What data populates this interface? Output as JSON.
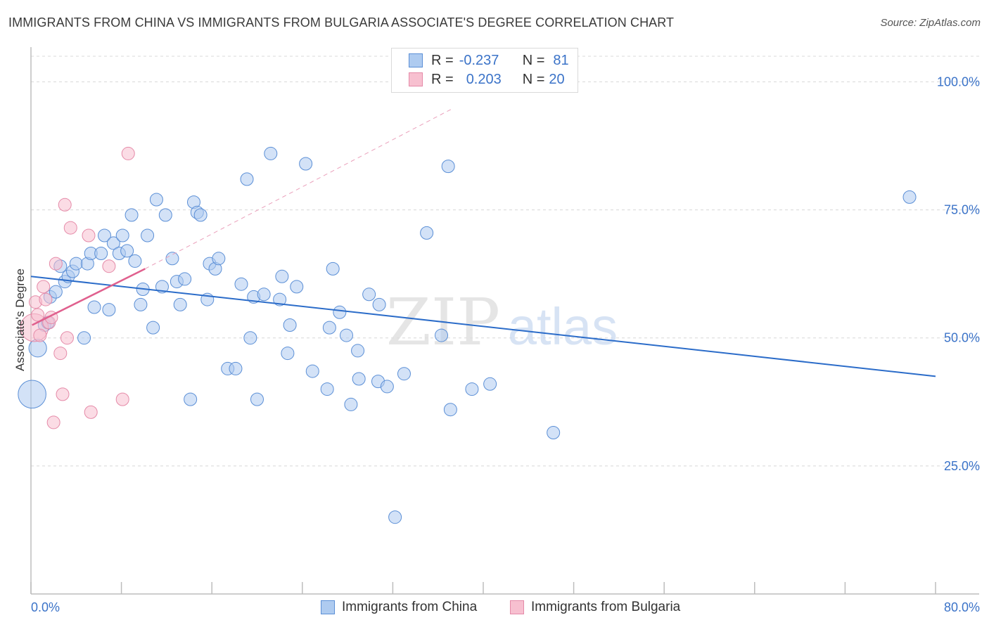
{
  "title": "IMMIGRANTS FROM CHINA VS IMMIGRANTS FROM BULGARIA ASSOCIATE'S DEGREE CORRELATION CHART",
  "source": "Source: ZipAtlas.com",
  "watermark": {
    "zip": "ZIP",
    "atlas": "atlas"
  },
  "legend": {
    "china": {
      "r_label": "R =",
      "r_value": "-0.237",
      "n_label": "N =",
      "n_value": "81"
    },
    "bulgaria": {
      "r_label": "R =",
      "r_value": "0.203",
      "n_label": "N =",
      "n_value": "20"
    }
  },
  "colors": {
    "china_fill": "#aecbf0",
    "china_stroke": "#5b8fd6",
    "china_line": "#2b6cc9",
    "bulgaria_fill": "#f7c0d0",
    "bulgaria_stroke": "#e58aa8",
    "bulgaria_line": "#e0608e",
    "tick_label": "#3b73c8",
    "grid": "#d8d8d8"
  },
  "chart_data": {
    "type": "scatter",
    "title": "IMMIGRANTS FROM CHINA VS IMMIGRANTS FROM BULGARIA ASSOCIATE'S DEGREE CORRELATION CHART",
    "xlabel": "",
    "ylabel": "Associate's Degree",
    "xlim": [
      0,
      80
    ],
    "ylim": [
      0,
      105
    ],
    "x_tick_labels": [
      "0.0%",
      "80.0%"
    ],
    "y_ticks": [
      25,
      50,
      75,
      100
    ],
    "y_tick_labels": [
      "25.0%",
      "50.0%",
      "75.0%",
      "100.0%"
    ],
    "grid": true,
    "legend_position": "top-center",
    "series": [
      {
        "name": "Immigrants from China",
        "points": [
          [
            0.1,
            39.0
          ],
          [
            0.6,
            48.0
          ],
          [
            1.2,
            52.5
          ],
          [
            1.5,
            53.0
          ],
          [
            1.7,
            58.0
          ],
          [
            2.2,
            59.0
          ],
          [
            2.6,
            64.0
          ],
          [
            3.0,
            61.0
          ],
          [
            3.3,
            62.0
          ],
          [
            3.7,
            63.0
          ],
          [
            4.0,
            64.5
          ],
          [
            4.7,
            50.0
          ],
          [
            5.0,
            64.5
          ],
          [
            5.3,
            66.5
          ],
          [
            5.6,
            56.0
          ],
          [
            6.2,
            66.5
          ],
          [
            6.5,
            70.0
          ],
          [
            6.9,
            55.5
          ],
          [
            7.3,
            68.5
          ],
          [
            7.8,
            66.5
          ],
          [
            8.1,
            70.0
          ],
          [
            8.5,
            67.0
          ],
          [
            8.9,
            74.0
          ],
          [
            9.2,
            65.0
          ],
          [
            9.7,
            56.5
          ],
          [
            9.9,
            59.5
          ],
          [
            10.3,
            70.0
          ],
          [
            10.8,
            52.0
          ],
          [
            11.1,
            77.0
          ],
          [
            11.6,
            60.0
          ],
          [
            11.9,
            74.0
          ],
          [
            12.5,
            65.5
          ],
          [
            12.9,
            61.0
          ],
          [
            13.2,
            56.5
          ],
          [
            13.6,
            61.5
          ],
          [
            14.1,
            38.0
          ],
          [
            14.4,
            76.5
          ],
          [
            14.7,
            74.5
          ],
          [
            15.0,
            74.0
          ],
          [
            15.6,
            57.5
          ],
          [
            15.8,
            64.5
          ],
          [
            16.3,
            63.5
          ],
          [
            16.6,
            65.5
          ],
          [
            17.4,
            44.0
          ],
          [
            18.1,
            44.0
          ],
          [
            18.6,
            60.5
          ],
          [
            19.1,
            81.0
          ],
          [
            19.4,
            50.0
          ],
          [
            19.7,
            58.0
          ],
          [
            20.0,
            38.0
          ],
          [
            20.6,
            58.5
          ],
          [
            21.2,
            86.0
          ],
          [
            22.0,
            57.5
          ],
          [
            22.2,
            62.0
          ],
          [
            22.7,
            47.0
          ],
          [
            22.9,
            52.5
          ],
          [
            23.5,
            60.0
          ],
          [
            24.3,
            84.0
          ],
          [
            24.9,
            43.5
          ],
          [
            26.2,
            40.0
          ],
          [
            26.4,
            52.0
          ],
          [
            26.7,
            63.5
          ],
          [
            27.3,
            55.0
          ],
          [
            27.9,
            50.5
          ],
          [
            28.3,
            37.0
          ],
          [
            28.9,
            47.5
          ],
          [
            29.0,
            42.0
          ],
          [
            29.9,
            58.5
          ],
          [
            30.7,
            41.5
          ],
          [
            30.8,
            56.5
          ],
          [
            31.5,
            40.5
          ],
          [
            32.2,
            15.0
          ],
          [
            33.0,
            43.0
          ],
          [
            35.0,
            70.5
          ],
          [
            36.3,
            50.5
          ],
          [
            36.9,
            83.5
          ],
          [
            37.1,
            36.0
          ],
          [
            39.0,
            40.0
          ],
          [
            40.6,
            41.0
          ],
          [
            46.2,
            31.5
          ],
          [
            77.7,
            77.5
          ]
        ],
        "sizes": [
          2.2,
          1.4,
          1.0,
          1.0,
          1.0,
          1.0,
          1.0,
          1.0,
          1.0,
          1.0,
          1.0,
          1.0,
          1.0,
          1.0,
          1.0,
          1.0,
          1.0,
          1.0,
          1.0,
          1.0,
          1.0,
          1.0,
          1.0,
          1.0,
          1.0,
          1.0,
          1.0,
          1.0,
          1.0,
          1.0,
          1.0,
          1.0,
          1.0,
          1.0,
          1.0,
          1.0,
          1.0,
          1.0,
          1.0,
          1.0,
          1.0,
          1.0,
          1.0,
          1.0,
          1.0,
          1.0,
          1.0,
          1.0,
          1.0,
          1.0,
          1.0,
          1.0,
          1.0,
          1.0,
          1.0,
          1.0,
          1.0,
          1.0,
          1.0,
          1.0,
          1.0,
          1.0,
          1.0,
          1.0,
          1.0,
          1.0,
          1.0,
          1.0,
          1.0,
          1.0,
          1.0,
          1.0,
          1.0,
          1.0,
          1.0,
          1.0,
          1.0,
          1.0,
          1.0,
          1.0,
          1.0
        ],
        "trend": {
          "x": [
            0,
            80
          ],
          "y": [
            62.0,
            42.5
          ]
        }
      },
      {
        "name": "Immigrants from Bulgaria",
        "points": [
          [
            0.3,
            52.0
          ],
          [
            0.4,
            57.0
          ],
          [
            0.6,
            54.5
          ],
          [
            0.8,
            50.5
          ],
          [
            1.1,
            60.0
          ],
          [
            1.3,
            57.5
          ],
          [
            1.6,
            53.0
          ],
          [
            1.8,
            54.0
          ],
          [
            2.0,
            33.5
          ],
          [
            2.2,
            64.5
          ],
          [
            2.6,
            47.0
          ],
          [
            2.8,
            39.0
          ],
          [
            3.0,
            76.0
          ],
          [
            3.2,
            50.0
          ],
          [
            3.5,
            71.5
          ],
          [
            5.1,
            70.0
          ],
          [
            5.3,
            35.5
          ],
          [
            6.9,
            64.0
          ],
          [
            8.1,
            38.0
          ],
          [
            8.6,
            86.0
          ]
        ],
        "sizes": [
          2.2,
          1.0,
          1.0,
          1.0,
          1.0,
          1.0,
          1.0,
          1.0,
          1.0,
          1.0,
          1.0,
          1.0,
          1.0,
          1.0,
          1.0,
          1.0,
          1.0,
          1.0,
          1.0,
          1.0
        ],
        "trend": {
          "x": [
            0.1,
            10.1
          ],
          "y": [
            52.5,
            63.5
          ]
        },
        "trend_extension": {
          "x": [
            10.1,
            37.3
          ],
          "y": [
            63.5,
            94.8
          ]
        }
      }
    ]
  },
  "bottom_legend": {
    "china_label": "Immigrants from China",
    "bulgaria_label": "Immigrants from Bulgaria"
  }
}
